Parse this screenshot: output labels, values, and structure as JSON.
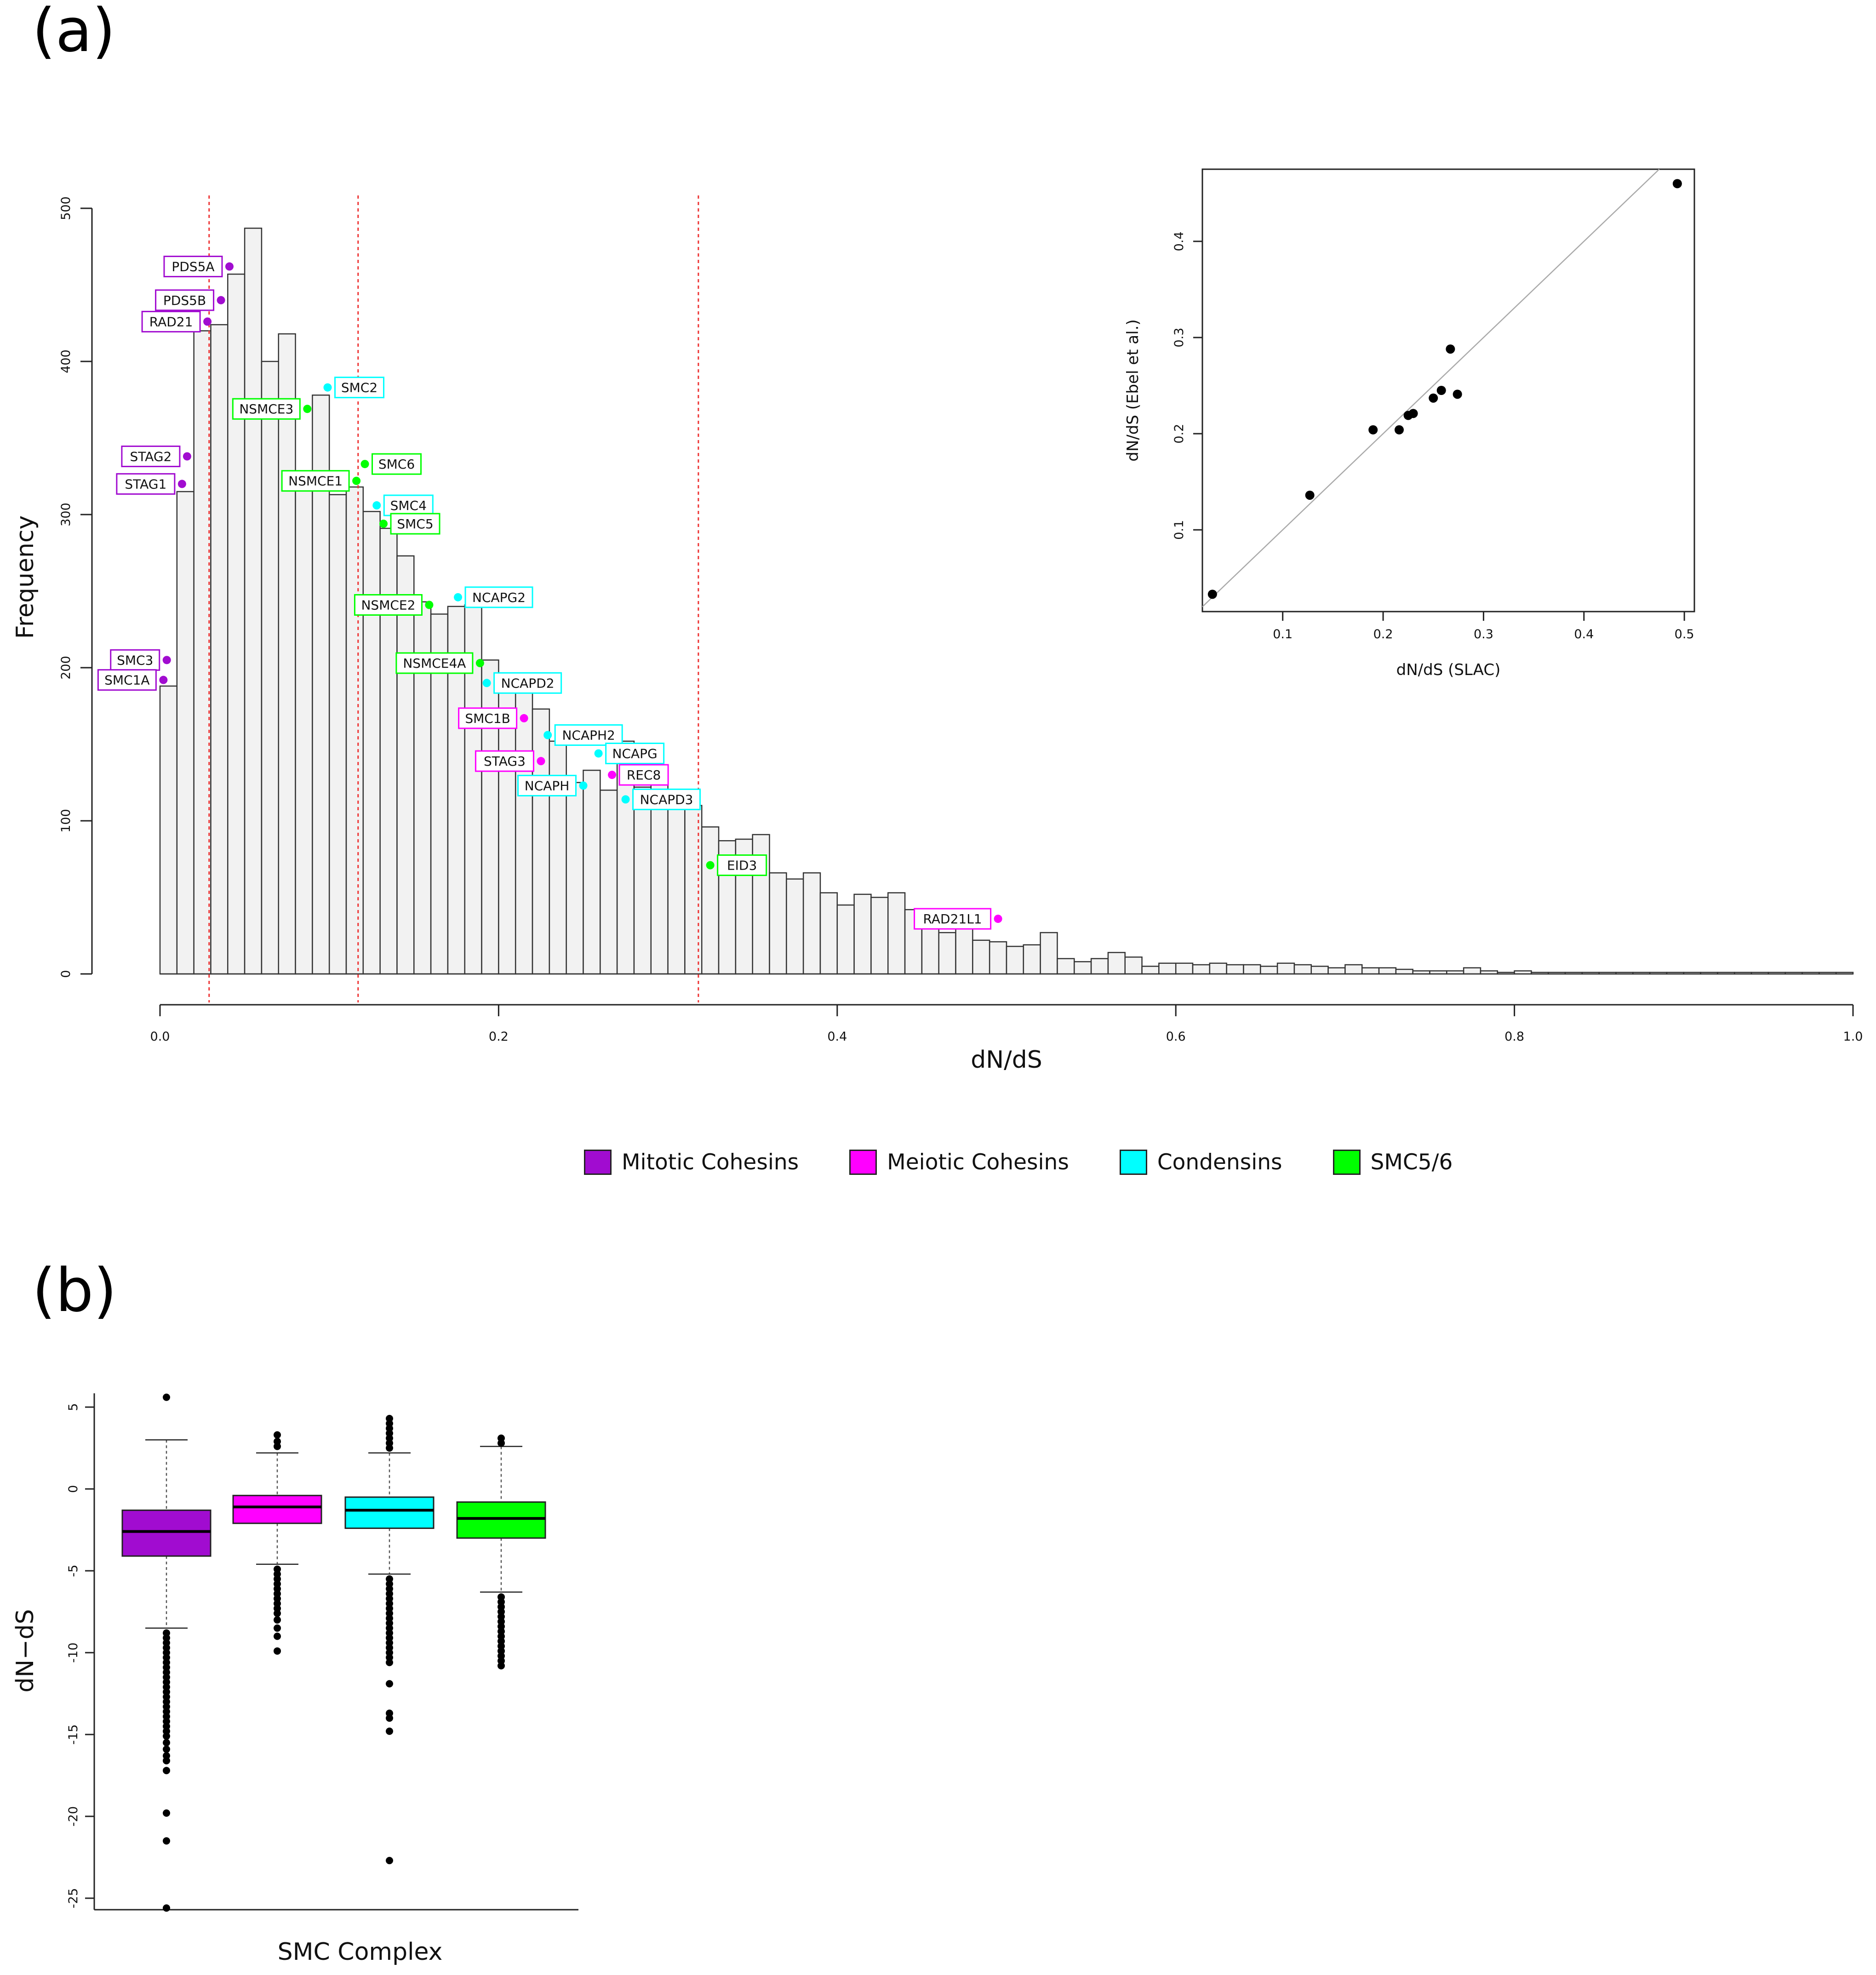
{
  "panels": {
    "a_label": "(a)",
    "b_label": "(b)"
  },
  "colors": {
    "mitotic": "#a10cd0",
    "meiotic": "#ff00ff",
    "condensin": "#00ffff",
    "smc56": "#00ff00",
    "bar_fill": "#f2f2f2",
    "bar_edge": "#333333",
    "ref_line": "#ee3333"
  },
  "legend": [
    {
      "label": "Mitotic Cohesins",
      "color": "#a10cd0"
    },
    {
      "label": "Meiotic Cohesins",
      "color": "#ff00ff"
    },
    {
      "label": "Condensins",
      "color": "#00ffff"
    },
    {
      "label": "SMC5/6",
      "color": "#00ff00"
    }
  ],
  "chart_data": [
    {
      "type": "bar",
      "subtype": "histogram",
      "panel": "(a)",
      "title": "",
      "xlabel": "dN/dS",
      "ylabel": "Frequency",
      "xlim": [
        0,
        1
      ],
      "ylim": [
        0,
        500
      ],
      "bin_width": 0.01,
      "x_ticks": [
        "0.0",
        "0.2",
        "0.4",
        "0.6",
        "0.8",
        "1.0"
      ],
      "y_ticks": [
        "0",
        "100",
        "200",
        "300",
        "400",
        "500"
      ],
      "counts": [
        188,
        315,
        420,
        424,
        457,
        487,
        400,
        418,
        323,
        378,
        313,
        318,
        302,
        291,
        273,
        243,
        235,
        240,
        241,
        205,
        190,
        191,
        173,
        152,
        125,
        133,
        120,
        152,
        122,
        130,
        120,
        110,
        96,
        87,
        88,
        91,
        66,
        62,
        66,
        53,
        45,
        52,
        50,
        53,
        42,
        35,
        27,
        32,
        22,
        21,
        18,
        19,
        27,
        10,
        8,
        10,
        14,
        11,
        5,
        7,
        7,
        6,
        7,
        6,
        6,
        5,
        7,
        6,
        5,
        4,
        6,
        4,
        4,
        3,
        2,
        2,
        2,
        4,
        2,
        1,
        2,
        1,
        1,
        1,
        1,
        1,
        1,
        1,
        1,
        1,
        1,
        1,
        1,
        1,
        1,
        1,
        1,
        1,
        1,
        1
      ],
      "reference_lines": [
        0.029,
        0.117,
        0.318
      ],
      "labeled_genes": [
        {
          "name": "PDS5A",
          "x": 0.041,
          "y": 462,
          "group": "mitotic",
          "side": "left"
        },
        {
          "name": "PDS5B",
          "x": 0.036,
          "y": 440,
          "group": "mitotic",
          "side": "left"
        },
        {
          "name": "RAD21",
          "x": 0.028,
          "y": 426,
          "group": "mitotic",
          "side": "left"
        },
        {
          "name": "STAG2",
          "x": 0.016,
          "y": 338,
          "group": "mitotic",
          "side": "left"
        },
        {
          "name": "STAG1",
          "x": 0.013,
          "y": 320,
          "group": "mitotic",
          "side": "left"
        },
        {
          "name": "SMC3",
          "x": 0.004,
          "y": 205,
          "group": "mitotic",
          "side": "left"
        },
        {
          "name": "SMC1A",
          "x": 0.002,
          "y": 192,
          "group": "mitotic",
          "side": "left"
        },
        {
          "name": "SMC2",
          "x": 0.099,
          "y": 383,
          "group": "condensin",
          "side": "right"
        },
        {
          "name": "NSMCE3",
          "x": 0.087,
          "y": 369,
          "group": "smc56",
          "side": "left"
        },
        {
          "name": "SMC6",
          "x": 0.121,
          "y": 333,
          "group": "smc56",
          "side": "right"
        },
        {
          "name": "NSMCE1",
          "x": 0.116,
          "y": 322,
          "group": "smc56",
          "side": "left"
        },
        {
          "name": "SMC4",
          "x": 0.128,
          "y": 306,
          "group": "condensin",
          "side": "right"
        },
        {
          "name": "SMC5",
          "x": 0.132,
          "y": 294,
          "group": "smc56",
          "side": "right"
        },
        {
          "name": "NCAPG2",
          "x": 0.176,
          "y": 246,
          "group": "condensin",
          "side": "right"
        },
        {
          "name": "NSMCE2",
          "x": 0.159,
          "y": 241,
          "group": "smc56",
          "side": "left"
        },
        {
          "name": "NSMCE4A",
          "x": 0.189,
          "y": 203,
          "group": "smc56",
          "side": "left"
        },
        {
          "name": "NCAPD2",
          "x": 0.193,
          "y": 190,
          "group": "condensin",
          "side": "right"
        },
        {
          "name": "SMC1B",
          "x": 0.215,
          "y": 167,
          "group": "meiotic",
          "side": "left"
        },
        {
          "name": "NCAPH2",
          "x": 0.229,
          "y": 156,
          "group": "condensin",
          "side": "right"
        },
        {
          "name": "NCAPG",
          "x": 0.259,
          "y": 144,
          "group": "condensin",
          "side": "right"
        },
        {
          "name": "STAG3",
          "x": 0.225,
          "y": 139,
          "group": "meiotic",
          "side": "left"
        },
        {
          "name": "REC8",
          "x": 0.267,
          "y": 130,
          "group": "meiotic",
          "side": "right"
        },
        {
          "name": "NCAPH",
          "x": 0.25,
          "y": 123,
          "group": "condensin",
          "side": "left"
        },
        {
          "name": "NCAPD3",
          "x": 0.275,
          "y": 114,
          "group": "condensin",
          "side": "right"
        },
        {
          "name": "EID3",
          "x": 0.325,
          "y": 71,
          "group": "smc56",
          "side": "right"
        },
        {
          "name": "RAD21L1",
          "x": 0.495,
          "y": 36,
          "group": "meiotic",
          "side": "left"
        }
      ]
    },
    {
      "type": "scatter",
      "panel": "(a) inset",
      "xlabel": "dN/dS (SLAC)",
      "ylabel": "dN/dS (Ebel et al.)",
      "xlim": [
        0.02,
        0.51
      ],
      "ylim": [
        0.015,
        0.475
      ],
      "x_ticks": [
        0.1,
        0.2,
        0.3,
        0.4,
        0.5
      ],
      "y_ticks": [
        0.1,
        0.2,
        0.3,
        0.4
      ],
      "x_tick_labels": [
        "0.1",
        "0.2",
        "0.3",
        "0.4",
        "0.5"
      ],
      "y_tick_labels": [
        "0.1",
        "0.2",
        "0.3",
        "0.4"
      ],
      "identity_line": true,
      "points": [
        {
          "x": 0.03,
          "y": 0.033
        },
        {
          "x": 0.127,
          "y": 0.136
        },
        {
          "x": 0.19,
          "y": 0.204
        },
        {
          "x": 0.216,
          "y": 0.204
        },
        {
          "x": 0.225,
          "y": 0.219
        },
        {
          "x": 0.23,
          "y": 0.221
        },
        {
          "x": 0.25,
          "y": 0.237
        },
        {
          "x": 0.258,
          "y": 0.245
        },
        {
          "x": 0.267,
          "y": 0.288
        },
        {
          "x": 0.274,
          "y": 0.241
        },
        {
          "x": 0.493,
          "y": 0.46
        }
      ]
    },
    {
      "type": "boxplot",
      "panel": "(b)",
      "xlabel": "SMC Complex",
      "ylabel": "dN−dS",
      "ylim": [
        -26,
        6
      ],
      "y_ticks": [
        5,
        0,
        -5,
        -10,
        -15,
        -20,
        -25
      ],
      "y_tick_labels": [
        "5",
        "0",
        "-5",
        "-10",
        "-15",
        "-20",
        "-25"
      ],
      "boxes": [
        {
          "group": "Mitotic Cohesins",
          "color": "#a10cd0",
          "whisker_low": -8.5,
          "q1": -4.1,
          "median": -2.6,
          "q3": -1.3,
          "whisker_high": 3.0,
          "outliers": [
            5.6,
            -8.8,
            -9.1,
            -9.4,
            -9.7,
            -10.0,
            -10.3,
            -10.6,
            -10.9,
            -11.2,
            -11.5,
            -11.8,
            -12.1,
            -12.4,
            -12.7,
            -13.0,
            -13.3,
            -13.6,
            -13.9,
            -14.2,
            -14.5,
            -14.8,
            -15.1,
            -15.5,
            -15.9,
            -16.3,
            -16.6,
            -17.2,
            -19.8,
            -21.5,
            -25.6
          ]
        },
        {
          "group": "Meiotic Cohesins",
          "color": "#ff00ff",
          "whisker_low": -4.6,
          "q1": -2.1,
          "median": -1.1,
          "q3": -0.4,
          "whisker_high": 2.2,
          "outliers": [
            2.6,
            2.9,
            3.3,
            -4.9,
            -5.2,
            -5.5,
            -5.8,
            -6.1,
            -6.4,
            -6.7,
            -7.0,
            -7.3,
            -7.6,
            -8.0,
            -8.5,
            -9.0,
            -9.9
          ]
        },
        {
          "group": "Condensins",
          "color": "#00ffff",
          "whisker_low": -5.2,
          "q1": -2.4,
          "median": -1.3,
          "q3": -0.5,
          "whisker_high": 2.2,
          "outliers": [
            2.5,
            2.8,
            3.1,
            3.4,
            3.7,
            4.0,
            4.3,
            -5.5,
            -5.8,
            -6.1,
            -6.4,
            -6.7,
            -7.0,
            -7.3,
            -7.6,
            -7.9,
            -8.2,
            -8.5,
            -8.8,
            -9.1,
            -9.4,
            -9.7,
            -10.0,
            -10.3,
            -10.6,
            -11.9,
            -13.7,
            -14.0,
            -14.8,
            -22.7
          ]
        },
        {
          "group": "SMC5/6",
          "color": "#00ff00",
          "whisker_low": -6.3,
          "q1": -3.0,
          "median": -1.8,
          "q3": -0.8,
          "whisker_high": 2.6,
          "outliers": [
            2.8,
            3.1,
            -6.6,
            -6.9,
            -7.2,
            -7.5,
            -7.8,
            -8.1,
            -8.4,
            -8.7,
            -9.0,
            -9.3,
            -9.6,
            -9.9,
            -10.2,
            -10.5,
            -10.8
          ]
        }
      ]
    }
  ]
}
